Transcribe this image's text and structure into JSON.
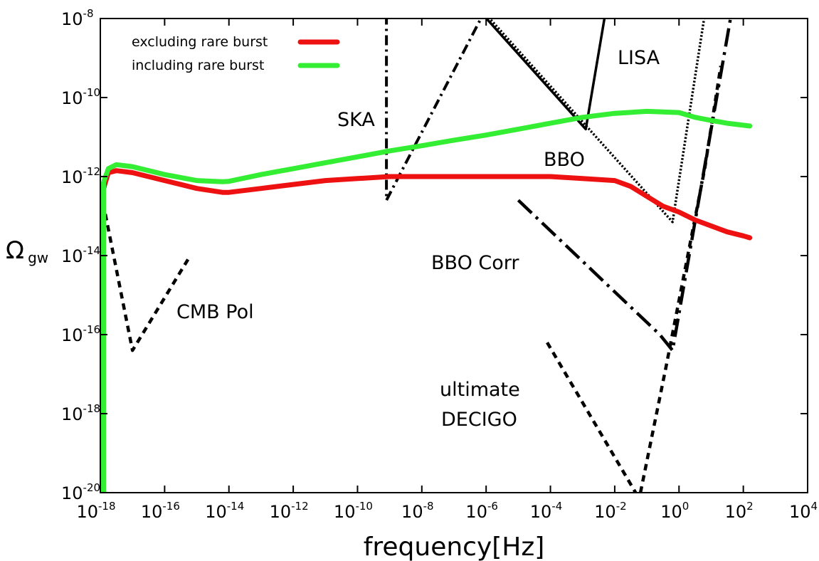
{
  "chart_data": {
    "type": "line",
    "xlabel": "frequency[Hz]",
    "ylabel": {
      "base": "Ω",
      "sub": "gw"
    },
    "xscale": "log",
    "yscale": "log",
    "xlim": [
      1e-18,
      10000.0
    ],
    "ylim": [
      1e-20,
      1e-08
    ],
    "grid": false,
    "legend": "top-left",
    "x_ticks": [
      {
        "exp": "-18"
      },
      {
        "exp": "-16"
      },
      {
        "exp": "-14"
      },
      {
        "exp": "-12"
      },
      {
        "exp": "-10"
      },
      {
        "exp": "-8"
      },
      {
        "exp": "-6"
      },
      {
        "exp": "-4"
      },
      {
        "exp": "-2"
      },
      {
        "exp": "0"
      },
      {
        "exp": "2"
      },
      {
        "exp": "4"
      }
    ],
    "y_ticks": [
      {
        "exp": "-8"
      },
      {
        "exp": "-10"
      },
      {
        "exp": "-12"
      },
      {
        "exp": "-14"
      },
      {
        "exp": "-16"
      },
      {
        "exp": "-18"
      },
      {
        "exp": "-20"
      }
    ],
    "series": [
      {
        "name": "excluding rare burst",
        "color": "#ee1111",
        "points": [
          [
            -17.9,
            -20
          ],
          [
            -17.9,
            -12.3
          ],
          [
            -17.75,
            -11.9
          ],
          [
            -17.5,
            -11.85
          ],
          [
            -17,
            -11.9
          ],
          [
            -16,
            -12.1
          ],
          [
            -15,
            -12.3
          ],
          [
            -14.2,
            -12.4
          ],
          [
            -14,
            -12.4
          ],
          [
            -13,
            -12.3
          ],
          [
            -12,
            -12.2
          ],
          [
            -11,
            -12.1
          ],
          [
            -10,
            -12.05
          ],
          [
            -9,
            -12.0
          ],
          [
            -8,
            -12.0
          ],
          [
            -7,
            -12.0
          ],
          [
            -6,
            -12.0
          ],
          [
            -5,
            -12.0
          ],
          [
            -4,
            -12.0
          ],
          [
            -3,
            -12.05
          ],
          [
            -2,
            -12.1
          ],
          [
            -1.5,
            -12.25
          ],
          [
            -1,
            -12.5
          ],
          [
            -0.5,
            -12.75
          ],
          [
            0,
            -12.9
          ],
          [
            0.5,
            -13.1
          ],
          [
            1,
            -13.25
          ],
          [
            1.5,
            -13.4
          ],
          [
            2,
            -13.5
          ],
          [
            2.2,
            -13.55
          ]
        ]
      },
      {
        "name": "including rare burst",
        "color": "#33ee33",
        "points": [
          [
            -17.9,
            -20
          ],
          [
            -17.9,
            -12.15
          ],
          [
            -17.75,
            -11.8
          ],
          [
            -17.5,
            -11.7
          ],
          [
            -17,
            -11.75
          ],
          [
            -16,
            -11.95
          ],
          [
            -15,
            -12.1
          ],
          [
            -14.2,
            -12.13
          ],
          [
            -14,
            -12.12
          ],
          [
            -13,
            -11.95
          ],
          [
            -12,
            -11.8
          ],
          [
            -11,
            -11.65
          ],
          [
            -10,
            -11.5
          ],
          [
            -9,
            -11.35
          ],
          [
            -8,
            -11.22
          ],
          [
            -7,
            -11.08
          ],
          [
            -6,
            -10.95
          ],
          [
            -5,
            -10.8
          ],
          [
            -4,
            -10.65
          ],
          [
            -3,
            -10.5
          ],
          [
            -2,
            -10.4
          ],
          [
            -1,
            -10.35
          ],
          [
            0,
            -10.38
          ],
          [
            0.5,
            -10.5
          ],
          [
            1,
            -10.58
          ],
          [
            1.5,
            -10.65
          ],
          [
            2,
            -10.7
          ],
          [
            2.2,
            -10.72
          ]
        ]
      }
    ],
    "sensitivity_curves": [
      {
        "id": "cmb-pol",
        "style": "dash",
        "points": [
          [
            -18.05,
            -12.1
          ],
          [
            -17.0,
            -16.4
          ],
          [
            -15.2,
            -14.0
          ]
        ]
      },
      {
        "id": "ska",
        "style": "dashdot",
        "points": [
          [
            -9.1,
            -7.9
          ],
          [
            -9.1,
            -12.6
          ],
          [
            -6.1,
            -7.9
          ]
        ]
      },
      {
        "id": "lisa",
        "style": "solid",
        "points": [
          [
            -6.1,
            -7.9
          ],
          [
            -2.9,
            -10.8
          ],
          [
            -2.3,
            -7.9
          ]
        ]
      },
      {
        "id": "bbo",
        "style": "dotted",
        "points": [
          [
            -6.0,
            -7.9
          ],
          [
            -0.2,
            -13.15
          ],
          [
            0.8,
            -7.9
          ]
        ]
      },
      {
        "id": "bbo-corr",
        "style": "longdash-dot",
        "points": [
          [
            -5.0,
            -12.6
          ],
          [
            -0.6,
            -16.0
          ],
          [
            -0.2,
            -16.4
          ],
          [
            1.6,
            -8.0
          ]
        ]
      },
      {
        "id": "ultimate-decigo",
        "style": "dash",
        "points": [
          [
            -4.1,
            -16.2
          ],
          [
            -1.35,
            -20.0
          ]
        ]
      },
      {
        "id": "decigo-right",
        "style": "dash",
        "points": [
          [
            -1.2,
            -20.0
          ],
          [
            -0.4,
            -16.8
          ],
          [
            0.8,
            -11.8
          ],
          [
            1.3,
            -9.2
          ]
        ]
      }
    ],
    "annotations": [
      {
        "id": "lisa",
        "text": "LISA"
      },
      {
        "id": "ska",
        "text": "SKA"
      },
      {
        "id": "bbo",
        "text": "BBO"
      },
      {
        "id": "bbo-corr",
        "text": "BBO Corr"
      },
      {
        "id": "cmb-pol",
        "text": "CMB Pol"
      },
      {
        "id": "decigo-1",
        "text": "ultimate"
      },
      {
        "id": "decigo-2",
        "text": "DECIGO"
      }
    ]
  }
}
